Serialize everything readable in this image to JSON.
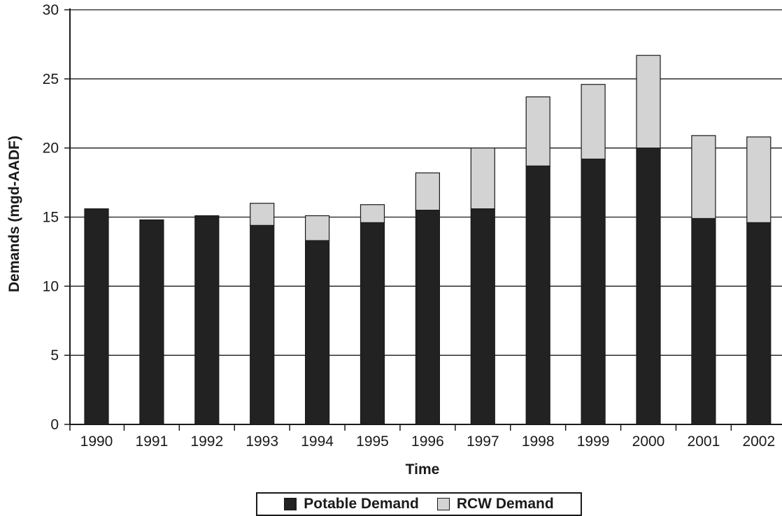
{
  "chart_data": {
    "type": "bar",
    "stacked": true,
    "categories": [
      "1990",
      "1991",
      "1992",
      "1993",
      "1994",
      "1995",
      "1996",
      "1997",
      "1998",
      "1999",
      "2000",
      "2001",
      "2002"
    ],
    "series": [
      {
        "name": "Potable Demand",
        "color": "#222222",
        "values": [
          15.6,
          14.8,
          15.1,
          14.4,
          13.3,
          14.6,
          15.5,
          15.6,
          18.7,
          19.2,
          20.0,
          14.9,
          14.6
        ]
      },
      {
        "name": "RCW Demand",
        "color": "#d3d3d3",
        "values": [
          0,
          0,
          0,
          1.6,
          1.8,
          1.3,
          2.7,
          4.4,
          5.0,
          5.4,
          6.7,
          6.0,
          6.2
        ]
      }
    ],
    "xlabel": "Time",
    "ylabel": "Demands (mgd-AADF)",
    "ylim": [
      0,
      30
    ],
    "yticks": [
      "0",
      "5",
      "10",
      "15",
      "20",
      "25",
      "30"
    ],
    "grid": true,
    "legend_position": "bottom-center"
  }
}
